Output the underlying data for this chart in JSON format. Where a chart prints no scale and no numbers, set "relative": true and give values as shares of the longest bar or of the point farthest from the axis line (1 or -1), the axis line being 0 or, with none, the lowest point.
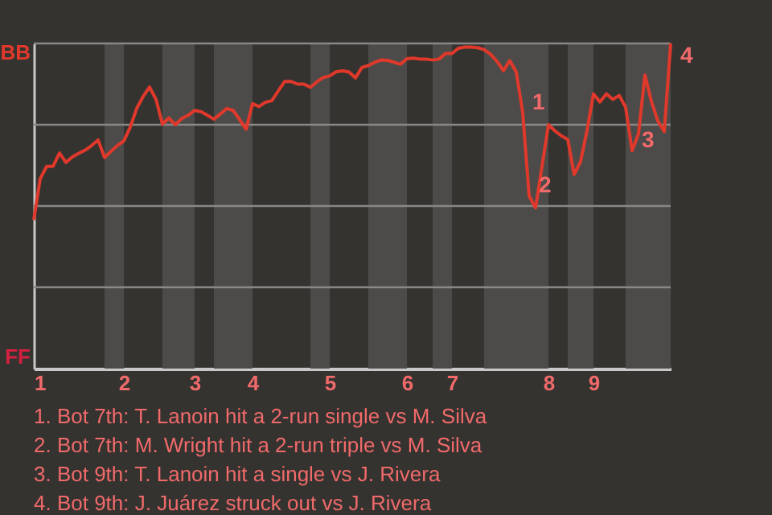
{
  "chart_data": {
    "type": "line",
    "relative": true,
    "categories": [
      "1",
      null,
      null,
      null,
      null,
      null,
      null,
      null,
      null,
      null,
      null,
      null,
      null,
      null,
      "2",
      null,
      null,
      null,
      null,
      null,
      null,
      null,
      null,
      null,
      null,
      "3",
      null,
      null,
      null,
      null,
      null,
      null,
      null,
      null,
      "4",
      null,
      null,
      null,
      null,
      null,
      null,
      null,
      null,
      null,
      null,
      null,
      "5",
      null,
      null,
      null,
      null,
      null,
      null,
      null,
      null,
      null,
      null,
      null,
      "6",
      null,
      null,
      null,
      null,
      null,
      null,
      "7",
      null,
      null,
      null,
      null,
      null,
      null,
      null,
      null,
      null,
      null,
      null,
      null,
      null,
      null,
      "8",
      null,
      null,
      null,
      null,
      null,
      null,
      "9",
      null,
      null,
      null,
      null,
      null,
      null,
      null,
      null,
      null,
      null,
      null,
      null
    ],
    "grid": false,
    "marker": "none",
    "line_style": "solid",
    "series": [
      {
        "color": "#e0392b",
        "values": [
          0.457,
          0.584,
          0.622,
          0.622,
          0.663,
          0.634,
          0.651,
          0.662,
          0.672,
          0.686,
          0.703,
          0.649,
          0.668,
          0.686,
          0.7,
          0.743,
          0.8,
          0.837,
          0.866,
          0.828,
          0.752,
          0.771,
          0.75,
          0.769,
          0.779,
          0.794,
          0.79,
          0.779,
          0.767,
          0.783,
          0.8,
          0.794,
          0.766,
          0.736,
          0.815,
          0.806,
          0.819,
          0.824,
          0.854,
          0.883,
          0.883,
          0.875,
          0.875,
          0.865,
          0.882,
          0.895,
          0.9,
          0.913,
          0.916,
          0.912,
          0.894,
          0.926,
          0.932,
          0.942,
          0.949,
          0.948,
          0.942,
          0.936,
          0.953,
          0.955,
          0.952,
          0.952,
          0.949,
          0.952,
          0.969,
          0.969,
          0.985,
          0.989,
          0.989,
          0.987,
          0.981,
          0.967,
          0.945,
          0.916,
          0.947,
          0.912,
          0.787,
          0.531,
          0.494,
          0.622,
          0.75,
          0.731,
          0.716,
          0.705,
          0.597,
          0.637,
          0.732,
          0.845,
          0.82,
          0.845,
          0.828,
          0.84,
          0.804,
          0.67,
          0.722,
          0.903,
          0.822,
          0.762,
          0.729,
          1
        ]
      }
    ],
    "ref_lines": [
      {
        "axis": "y",
        "value": 0.25,
        "color": "#8a8886"
      },
      {
        "axis": "y",
        "value": 0.5,
        "color": "#8a8886"
      },
      {
        "axis": "y",
        "value": 0.75,
        "color": "#8a8886"
      },
      {
        "axis": "y",
        "value": 1,
        "color": "#8a8886"
      }
    ],
    "annotations": [
      "BB",
      "FF",
      "1",
      "2",
      "3",
      "4",
      "1. Bot 7th: T. Lanoin hit a 2-run single vs M. Silva",
      "2. Bot 7th: M. Wright hit a 2-run triple vs M. Silva",
      "3. Bot 9th: T. Lanoin hit a single vs J. Rivera",
      "4. Bot 9th: J. Juárez struck out vs J. Rivera"
    ]
  }
}
